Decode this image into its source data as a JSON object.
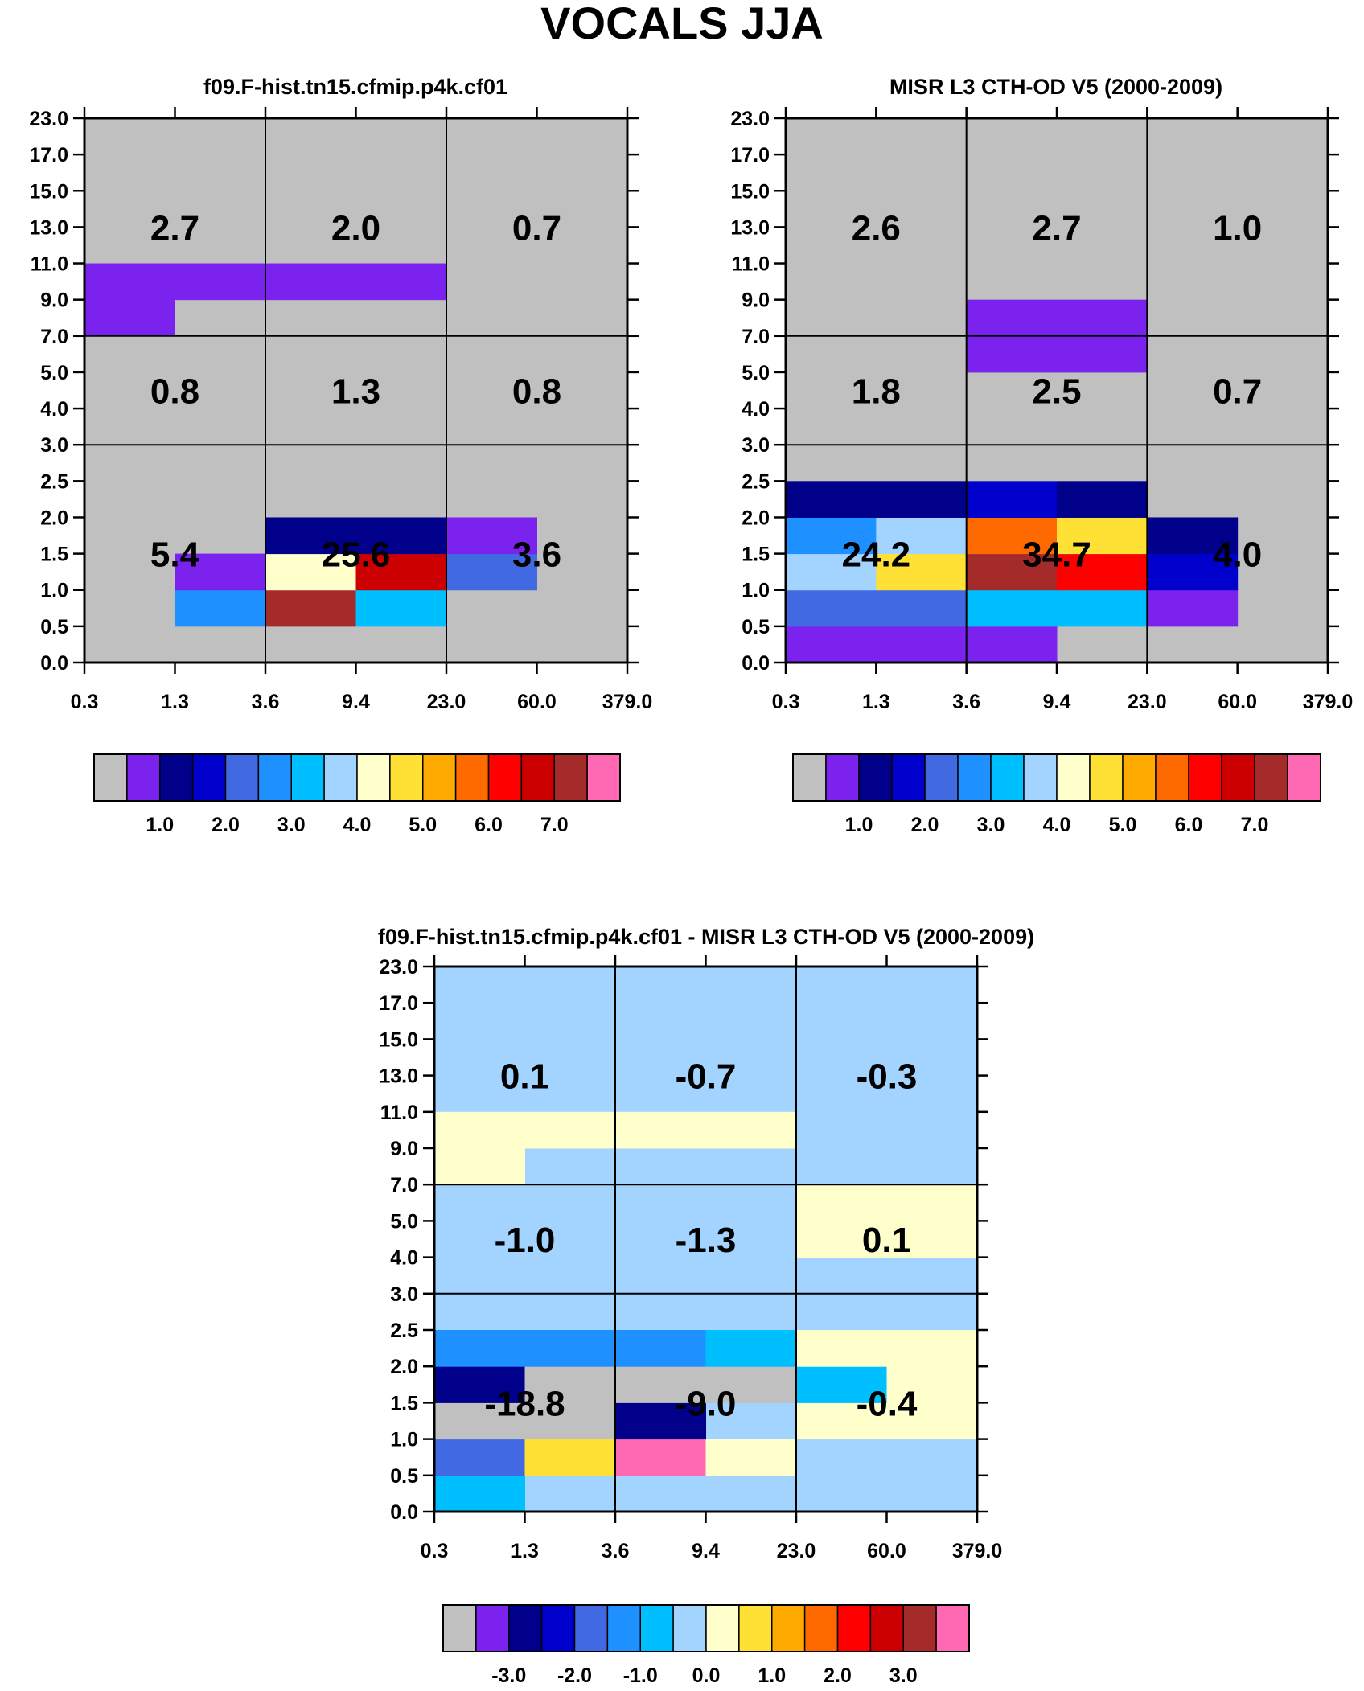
{
  "figure_title": "VOCALS JJA",
  "palettes": {
    "abs": [
      "#c0c0c0",
      "#7b22ee",
      "#00008a",
      "#0000cd",
      "#4169e1",
      "#1e90ff",
      "#00bfff",
      "#a3d3ff",
      "#ffffcc",
      "#ffe135",
      "#ffaa00",
      "#ff6a00",
      "#ff0000",
      "#cc0000",
      "#a52a2a",
      "#ff69b4"
    ],
    "diff": [
      "#c0c0c0",
      "#7b22ee",
      "#00008a",
      "#0000cd",
      "#4169e1",
      "#1e90ff",
      "#00bfff",
      "#a3d3ff",
      "#ffffcc",
      "#ffe135",
      "#ffaa00",
      "#ff6a00",
      "#ff0000",
      "#cc0000",
      "#a52a2a",
      "#ff69b4"
    ]
  },
  "chart_data": [
    {
      "type": "heatmap",
      "title": "f09.F-hist.tn15.cfmip.p4k.cf01",
      "x_ticks": [
        "0.3",
        "1.3",
        "3.6",
        "9.4",
        "23.0",
        "60.0",
        "379.0"
      ],
      "y_ticks": [
        "0.0",
        "0.5",
        "1.0",
        "1.5",
        "2.0",
        "2.5",
        "3.0",
        "4.0",
        "5.0",
        "7.0",
        "9.0",
        "11.0",
        "13.0",
        "15.0",
        "17.0",
        "23.0"
      ],
      "palette": "abs",
      "colorbar_labels": [
        "1.0",
        "2.0",
        "3.0",
        "4.0",
        "5.0",
        "6.0",
        "7.0"
      ],
      "colorbar_label_start": 1,
      "background_index": 0,
      "cells_note": "[x_bin, y_bin, color_index]",
      "cells": [
        [
          1,
          1,
          5
        ],
        [
          2,
          1,
          14
        ],
        [
          3,
          1,
          6
        ],
        [
          1,
          2,
          1
        ],
        [
          2,
          2,
          8
        ],
        [
          3,
          2,
          13
        ],
        [
          4,
          2,
          4
        ],
        [
          2,
          3,
          2
        ],
        [
          3,
          3,
          2
        ],
        [
          4,
          3,
          1
        ],
        [
          0,
          9,
          1
        ],
        [
          0,
          10,
          1
        ],
        [
          1,
          10,
          1
        ],
        [
          2,
          10,
          1
        ],
        [
          3,
          10,
          1
        ]
      ],
      "summary_values": [
        {
          "x_group": 0,
          "y_group": 2,
          "label": "2.7"
        },
        {
          "x_group": 1,
          "y_group": 2,
          "label": "2.0"
        },
        {
          "x_group": 2,
          "y_group": 2,
          "label": "0.7"
        },
        {
          "x_group": 0,
          "y_group": 1,
          "label": "0.8"
        },
        {
          "x_group": 1,
          "y_group": 1,
          "label": "1.3"
        },
        {
          "x_group": 2,
          "y_group": 1,
          "label": "0.8"
        },
        {
          "x_group": 0,
          "y_group": 0,
          "label": "5.4"
        },
        {
          "x_group": 1,
          "y_group": 0,
          "label": "25.6"
        },
        {
          "x_group": 2,
          "y_group": 0,
          "label": "3.6"
        }
      ]
    },
    {
      "type": "heatmap",
      "title": "MISR L3 CTH-OD V5 (2000-2009)",
      "x_ticks": [
        "0.3",
        "1.3",
        "3.6",
        "9.4",
        "23.0",
        "60.0",
        "379.0"
      ],
      "y_ticks": [
        "0.0",
        "0.5",
        "1.0",
        "1.5",
        "2.0",
        "2.5",
        "3.0",
        "4.0",
        "5.0",
        "7.0",
        "9.0",
        "11.0",
        "13.0",
        "15.0",
        "17.0",
        "23.0"
      ],
      "palette": "abs",
      "colorbar_labels": [
        "1.0",
        "2.0",
        "3.0",
        "4.0",
        "5.0",
        "6.0",
        "7.0"
      ],
      "colorbar_label_start": 1,
      "background_index": 0,
      "cells_note": "[x_bin, y_bin, color_index]",
      "cells": [
        [
          0,
          0,
          1
        ],
        [
          1,
          0,
          1
        ],
        [
          2,
          0,
          1
        ],
        [
          0,
          1,
          4
        ],
        [
          1,
          1,
          4
        ],
        [
          2,
          1,
          6
        ],
        [
          3,
          1,
          6
        ],
        [
          4,
          1,
          1
        ],
        [
          0,
          2,
          7
        ],
        [
          1,
          2,
          9
        ],
        [
          2,
          2,
          14
        ],
        [
          3,
          2,
          12
        ],
        [
          4,
          2,
          3
        ],
        [
          0,
          3,
          5
        ],
        [
          1,
          3,
          7
        ],
        [
          2,
          3,
          11
        ],
        [
          3,
          3,
          9
        ],
        [
          4,
          3,
          2
        ],
        [
          0,
          4,
          2
        ],
        [
          1,
          4,
          2
        ],
        [
          2,
          4,
          3
        ],
        [
          3,
          4,
          2
        ],
        [
          2,
          8,
          1
        ],
        [
          3,
          8,
          1
        ],
        [
          2,
          9,
          1
        ],
        [
          3,
          9,
          1
        ]
      ],
      "summary_values": [
        {
          "x_group": 0,
          "y_group": 2,
          "label": "2.6"
        },
        {
          "x_group": 1,
          "y_group": 2,
          "label": "2.7"
        },
        {
          "x_group": 2,
          "y_group": 2,
          "label": "1.0"
        },
        {
          "x_group": 0,
          "y_group": 1,
          "label": "1.8"
        },
        {
          "x_group": 1,
          "y_group": 1,
          "label": "2.5"
        },
        {
          "x_group": 2,
          "y_group": 1,
          "label": "0.7"
        },
        {
          "x_group": 0,
          "y_group": 0,
          "label": "24.2"
        },
        {
          "x_group": 1,
          "y_group": 0,
          "label": "34.7"
        },
        {
          "x_group": 2,
          "y_group": 0,
          "label": "4.0"
        }
      ]
    },
    {
      "type": "heatmap",
      "title": "f09.F-hist.tn15.cfmip.p4k.cf01 - MISR L3 CTH-OD V5 (2000-2009)",
      "x_ticks": [
        "0.3",
        "1.3",
        "3.6",
        "9.4",
        "23.0",
        "60.0",
        "379.0"
      ],
      "y_ticks": [
        "0.0",
        "0.5",
        "1.0",
        "1.5",
        "2.0",
        "2.5",
        "3.0",
        "4.0",
        "5.0",
        "7.0",
        "9.0",
        "11.0",
        "13.0",
        "15.0",
        "17.0",
        "23.0"
      ],
      "palette": "diff",
      "colorbar_labels": [
        "-3.0",
        "-2.0",
        "-1.0",
        "0.0",
        "1.0",
        "2.0",
        "3.0"
      ],
      "colorbar_label_start": 1,
      "background_index": 7,
      "cells_note": "[x_bin, y_bin, color_index]",
      "cells": [
        [
          0,
          0,
          6
        ],
        [
          0,
          1,
          4
        ],
        [
          1,
          1,
          9
        ],
        [
          2,
          1,
          15
        ],
        [
          3,
          1,
          8
        ],
        [
          0,
          2,
          0
        ],
        [
          1,
          2,
          0
        ],
        [
          2,
          2,
          2
        ],
        [
          4,
          2,
          8
        ],
        [
          5,
          2,
          8
        ],
        [
          0,
          3,
          2
        ],
        [
          1,
          3,
          0
        ],
        [
          2,
          3,
          0
        ],
        [
          3,
          3,
          0
        ],
        [
          4,
          3,
          6
        ],
        [
          5,
          3,
          8
        ],
        [
          0,
          4,
          5
        ],
        [
          1,
          4,
          5
        ],
        [
          2,
          4,
          5
        ],
        [
          3,
          4,
          6
        ],
        [
          4,
          4,
          8
        ],
        [
          5,
          4,
          8
        ],
        [
          4,
          7,
          8
        ],
        [
          5,
          7,
          8
        ],
        [
          4,
          8,
          8
        ],
        [
          5,
          8,
          8
        ],
        [
          0,
          9,
          8
        ],
        [
          0,
          10,
          8
        ],
        [
          1,
          10,
          8
        ],
        [
          2,
          10,
          8
        ],
        [
          3,
          10,
          8
        ]
      ],
      "summary_values": [
        {
          "x_group": 0,
          "y_group": 2,
          "label": "0.1"
        },
        {
          "x_group": 1,
          "y_group": 2,
          "label": "-0.7"
        },
        {
          "x_group": 2,
          "y_group": 2,
          "label": "-0.3"
        },
        {
          "x_group": 0,
          "y_group": 1,
          "label": "-1.0"
        },
        {
          "x_group": 1,
          "y_group": 1,
          "label": "-1.3"
        },
        {
          "x_group": 2,
          "y_group": 1,
          "label": "0.1"
        },
        {
          "x_group": 0,
          "y_group": 0,
          "label": "-18.8"
        },
        {
          "x_group": 1,
          "y_group": 0,
          "label": "-9.0"
        },
        {
          "x_group": 2,
          "y_group": 0,
          "label": "-0.4"
        }
      ]
    }
  ]
}
